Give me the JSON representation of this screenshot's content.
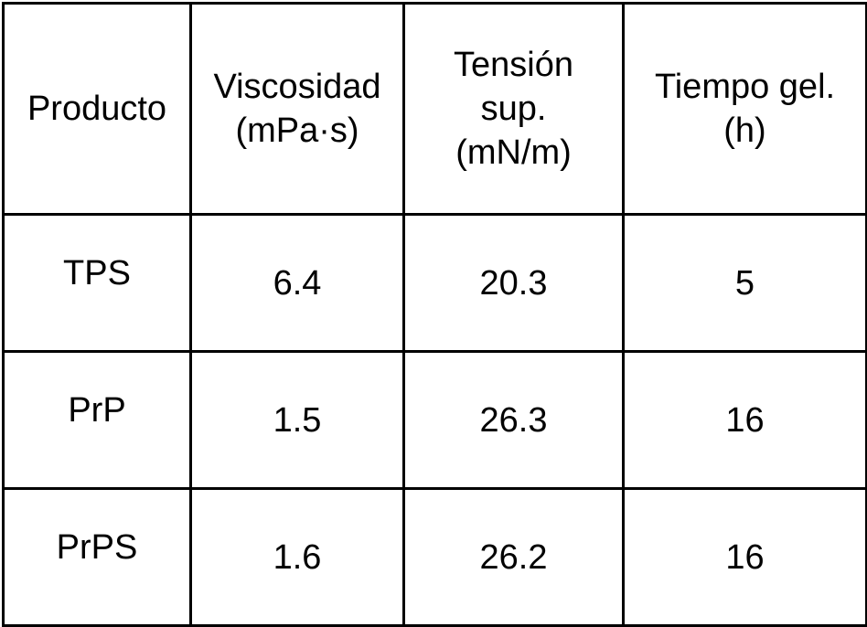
{
  "table": {
    "header": [
      [
        "Producto"
      ],
      [
        "Viscosidad",
        "(mPa·s)"
      ],
      [
        "Tensión",
        "sup.",
        "(mN/m)"
      ],
      [
        "Tiempo gel.",
        "(h)"
      ]
    ],
    "rows": [
      [
        "TPS",
        "6.4",
        "20.3",
        "5"
      ],
      [
        "PrP",
        "1.5",
        "26.3",
        "16"
      ],
      [
        "PrPS",
        "1.6",
        "26.2",
        "16"
      ]
    ]
  }
}
